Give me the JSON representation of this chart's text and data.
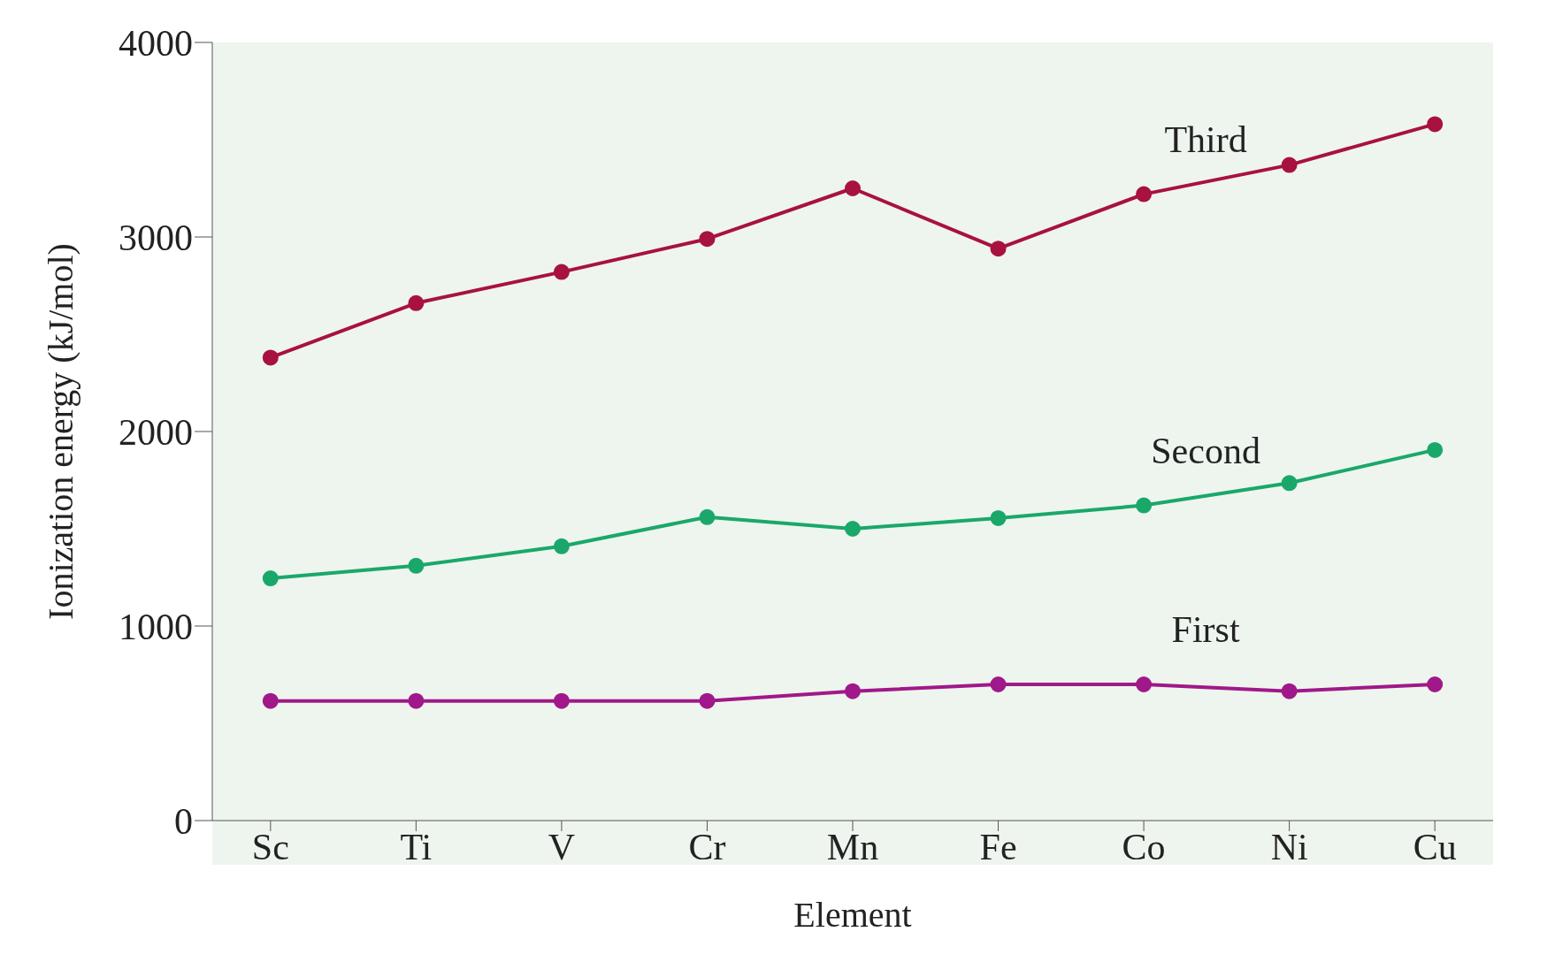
{
  "chart_data": {
    "type": "line",
    "xlabel": "Element",
    "ylabel": "Ionization energy (kJ/mol)",
    "categories": [
      "Sc",
      "Ti",
      "V",
      "Cr",
      "Mn",
      "Fe",
      "Co",
      "Ni",
      "Cu"
    ],
    "ylim": [
      0,
      4000
    ],
    "yticks": [
      0,
      1000,
      2000,
      3000,
      4000
    ],
    "grid": false,
    "legend": false,
    "marker": "circle",
    "line_style": "solid",
    "series": [
      {
        "name": "Third",
        "color": "#a8123e",
        "values": [
          2380,
          2660,
          2820,
          2990,
          3250,
          2940,
          3220,
          3370,
          3580
        ]
      },
      {
        "name": "Second",
        "color": "#1aa86a",
        "values": [
          1245,
          1310,
          1410,
          1560,
          1500,
          1555,
          1620,
          1735,
          1905
        ]
      },
      {
        "name": "First",
        "color": "#a0188a",
        "values": [
          615,
          615,
          615,
          615,
          665,
          700,
          700,
          665,
          700
        ]
      }
    ]
  }
}
